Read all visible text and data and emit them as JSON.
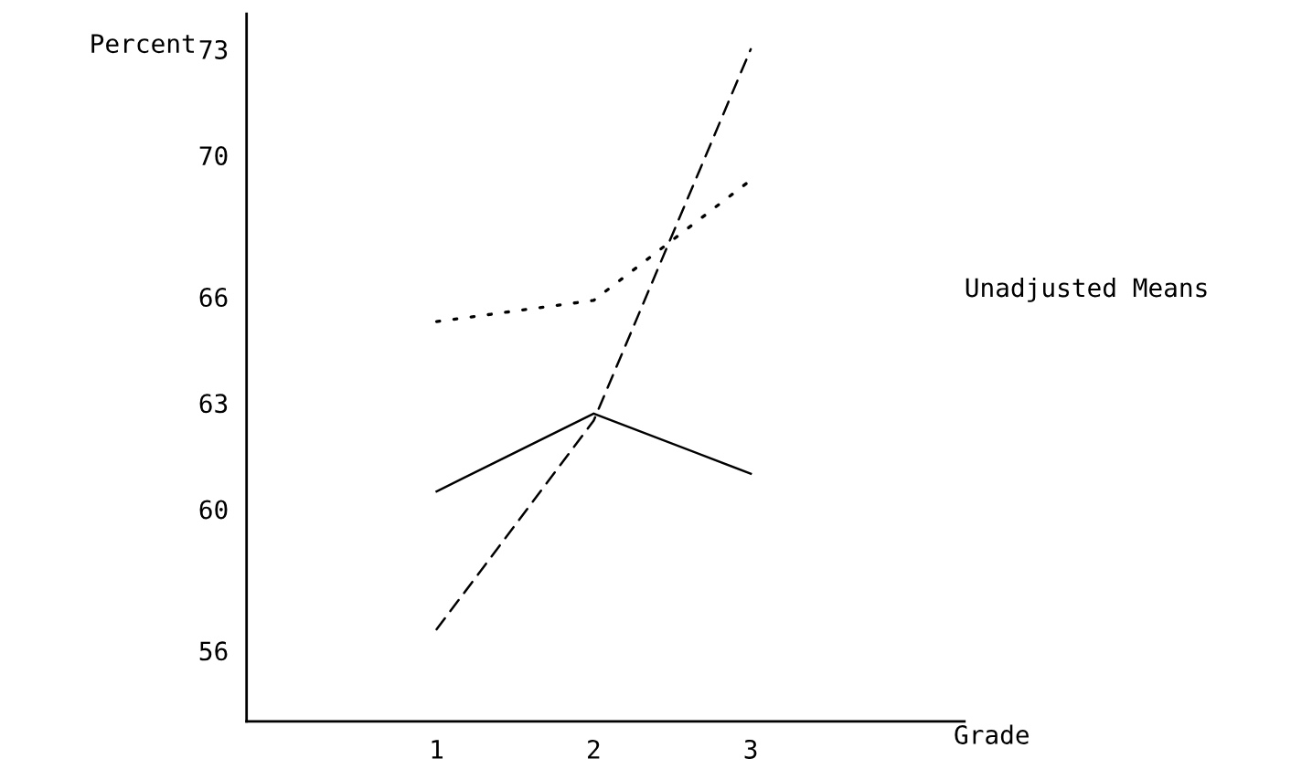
{
  "chart_data": {
    "type": "line",
    "xlabel": "Grade",
    "ylabel": "Percent",
    "categories": [
      "1",
      "2",
      "3"
    ],
    "ylim": [
      54,
      74
    ],
    "yticks": [
      56,
      60,
      63,
      66,
      70,
      73
    ],
    "series": [
      {
        "color": "#000000",
        "line_style": "solid",
        "values": [
          60.5,
          62.7,
          61.0
        ]
      },
      {
        "color": "#000000",
        "line_style": "dashed",
        "values": [
          56.6,
          62.5,
          73.0
        ]
      },
      {
        "color": "#000000",
        "line_style": "dotted",
        "values": [
          65.3,
          65.9,
          69.3
        ]
      }
    ],
    "annotations": [
      "Unadjusted Means"
    ],
    "grid": false,
    "legend": false,
    "marker": "none"
  }
}
